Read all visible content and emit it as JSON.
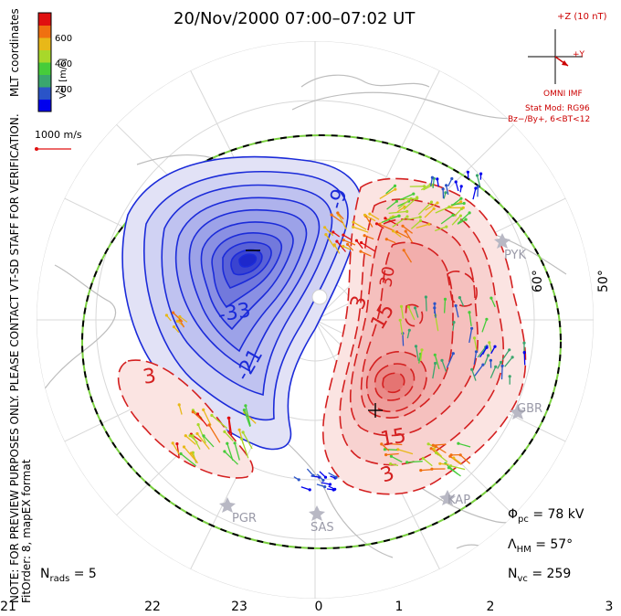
{
  "title": "20/Nov/2000 07:00–07:02 UT",
  "coordinates_label": "MLT coordinates",
  "verification_note": "NOTE: FOR PREVIEW PURPOSES ONLY. PLEASE CONTACT VT-SD STAFF FOR VERIFICATION.",
  "fit_note": "FitOrder: 8, mapEX format",
  "colorbar": {
    "title": "Vel [m/s]",
    "ticks": [
      "600",
      "400",
      "200"
    ],
    "colors": [
      "#0000ee",
      "#2a54c8",
      "#3aa66e",
      "#46cc3a",
      "#a8d82a",
      "#e8b818",
      "#f07010",
      "#e01010"
    ]
  },
  "scale_vector_label": "1000 m/s",
  "imf": {
    "scale_label": "+Z (10 nT)",
    "y_label": "+Y",
    "source": "OMNI IMF",
    "model": "Stat Mod: RG96",
    "condition": "Bz−/By+, 6<BT<12"
  },
  "stats": {
    "phi_pc": "= 78 kV",
    "lambda_hm": "= 57°",
    "n_vc": "= 259",
    "n_rads": "= 5"
  },
  "mlt_labels": [
    "21",
    "22",
    "23",
    "0",
    "1",
    "2",
    "3"
  ],
  "latitude_labels": [
    "60°",
    "50°"
  ],
  "stations": [
    "PYK",
    "GBR",
    "KAP",
    "PGR",
    "SAS"
  ],
  "contour_labels": [
    "-9",
    "-33",
    "-21",
    "3",
    "15",
    "30",
    "3",
    "15",
    "3"
  ],
  "colors": {
    "dusk_cell": "#1b2bd9",
    "dawn_cell": "#d42020",
    "hmb_dash_a": "#000000",
    "hmb_dash_b": "#7ad040"
  }
}
